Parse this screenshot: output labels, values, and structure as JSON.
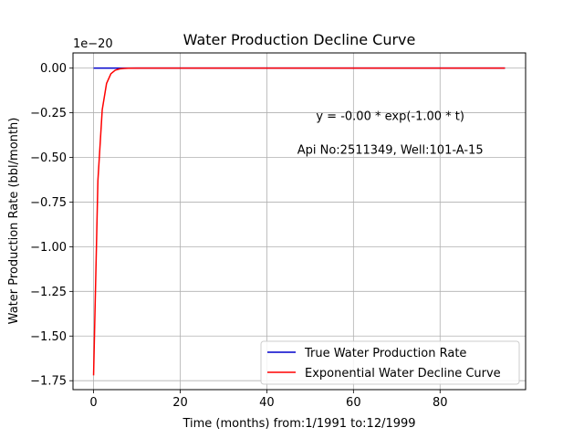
{
  "chart_data": {
    "type": "line",
    "title": "Water Production Decline Curve",
    "xlabel": "Time (months) from:1/1991 to:12/1999",
    "ylabel": "Water Production Rate (bbl/month)",
    "offset_text": "1e−20",
    "xlim": [
      -4.75,
      99.75
    ],
    "ylim": [
      -1.8,
      0.085
    ],
    "xticks": [
      0,
      20,
      40,
      60,
      80
    ],
    "xtick_labels": [
      "0",
      "20",
      "40",
      "60",
      "80"
    ],
    "yticks": [
      0.0,
      -0.25,
      -0.5,
      -0.75,
      -1.0,
      -1.25,
      -1.5,
      -1.75
    ],
    "ytick_labels": [
      "0.00",
      "−0.25",
      "−0.50",
      "−0.75",
      "−1.00",
      "−1.25",
      "−1.50",
      "−1.75"
    ],
    "grid": true,
    "legend_placement": "lower-right",
    "annotations": [
      {
        "text": "y = -0.00 * exp(-1.00 * t)",
        "x": 68.5,
        "y": -0.29
      },
      {
        "text": "Api No:2511349, Well:101-A-15",
        "x": 68.5,
        "y": -0.48
      }
    ],
    "series": [
      {
        "name": "True Water Production Rate",
        "color": "#0000cc",
        "x": [
          0,
          95
        ],
        "y": [
          0,
          0
        ]
      },
      {
        "name": "Exponential Water Decline Curve",
        "color": "#ff0000",
        "x": [
          0,
          1,
          2,
          3,
          4,
          5,
          6,
          7,
          8,
          10,
          20,
          40,
          60,
          80,
          95
        ],
        "y": [
          -1.72,
          -0.63,
          -0.233,
          -0.0857,
          -0.0315,
          -0.0116,
          -0.00426,
          -0.00157,
          -0.000577,
          -7.8e-05,
          0,
          0,
          0,
          0,
          0
        ]
      }
    ]
  }
}
